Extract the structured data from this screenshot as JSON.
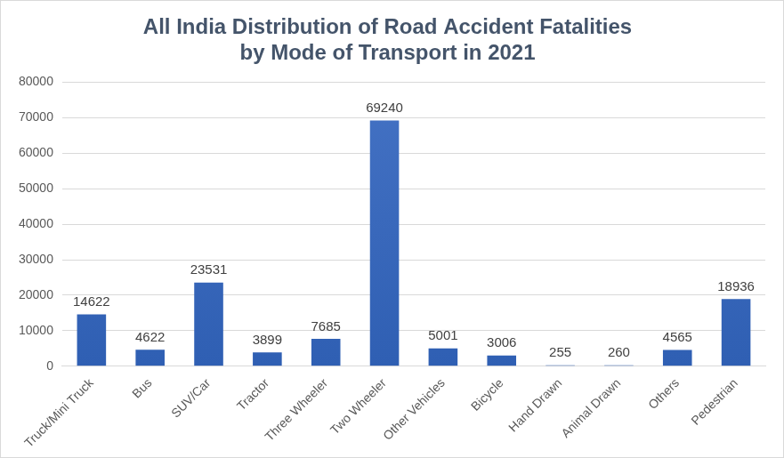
{
  "chart_data": {
    "type": "bar",
    "title": [
      "All India Distribution of Road Accident Fatalities",
      "by Mode of Transport in 2021"
    ],
    "categories": [
      "Truck/Mini Truck",
      "Bus",
      "SUV/Car",
      "Tractor",
      "Three Wheeler",
      "Two Wheeler",
      "Other Vehicles",
      "Bicycle",
      "Hand Drawn",
      "Animal Drawn",
      "Others",
      "Pedestrian"
    ],
    "values": [
      14622,
      4622,
      23531,
      3899,
      7685,
      69240,
      5001,
      3006,
      255,
      260,
      4565,
      18936
    ],
    "color": "#4472c4",
    "ylim": [
      0,
      80000
    ],
    "yticks": [
      0,
      10000,
      20000,
      30000,
      40000,
      50000,
      60000,
      70000,
      80000
    ],
    "grid": true,
    "data_labels": true
  }
}
